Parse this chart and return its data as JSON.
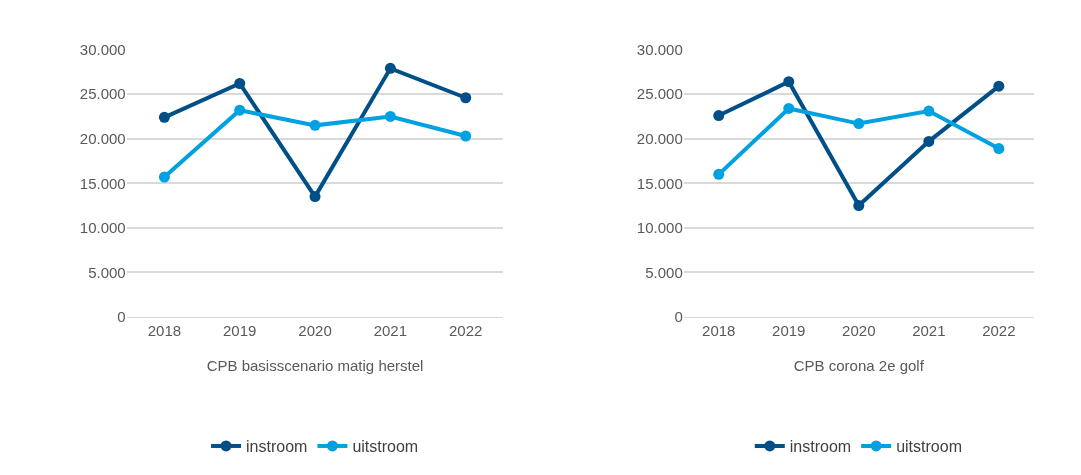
{
  "chart_data": [
    {
      "type": "line",
      "xlabel": "CPB basisscenario matig herstel",
      "categories": [
        "2018",
        "2019",
        "2020",
        "2021",
        "2022"
      ],
      "series": [
        {
          "name": "instroom",
          "color": "#004f86",
          "values": [
            22400,
            26200,
            13500,
            27900,
            24600
          ]
        },
        {
          "name": "uitstroom",
          "color": "#00a1e1",
          "values": [
            15700,
            23200,
            21500,
            22500,
            20300
          ]
        }
      ],
      "ylim": [
        0,
        30000
      ],
      "yticks": [
        {
          "value": 0,
          "label": "0"
        },
        {
          "value": 5000,
          "label": "5.000"
        },
        {
          "value": 10000,
          "label": "10.000"
        },
        {
          "value": 15000,
          "label": "15.000"
        },
        {
          "value": 20000,
          "label": "20.000"
        },
        {
          "value": 25000,
          "label": "25.000"
        },
        {
          "value": 30000,
          "label": "30.000"
        }
      ],
      "grid": "y",
      "legend": "bottom",
      "marker": "circle",
      "line_style": "solid"
    },
    {
      "type": "line",
      "xlabel": "CPB corona 2e golf",
      "categories": [
        "2018",
        "2019",
        "2020",
        "2021",
        "2022"
      ],
      "series": [
        {
          "name": "instroom",
          "color": "#004f86",
          "values": [
            22600,
            26400,
            12500,
            19700,
            25900
          ]
        },
        {
          "name": "uitstroom",
          "color": "#00a1e1",
          "values": [
            16000,
            23400,
            21700,
            23100,
            18900
          ]
        }
      ],
      "ylim": [
        0,
        30000
      ],
      "yticks": [
        {
          "value": 0,
          "label": "0"
        },
        {
          "value": 5000,
          "label": "5.000"
        },
        {
          "value": 10000,
          "label": "10.000"
        },
        {
          "value": 15000,
          "label": "15.000"
        },
        {
          "value": 20000,
          "label": "20.000"
        },
        {
          "value": 25000,
          "label": "25.000"
        },
        {
          "value": 30000,
          "label": "30.000"
        }
      ],
      "grid": "y",
      "legend": "bottom",
      "marker": "circle",
      "line_style": "solid"
    }
  ]
}
